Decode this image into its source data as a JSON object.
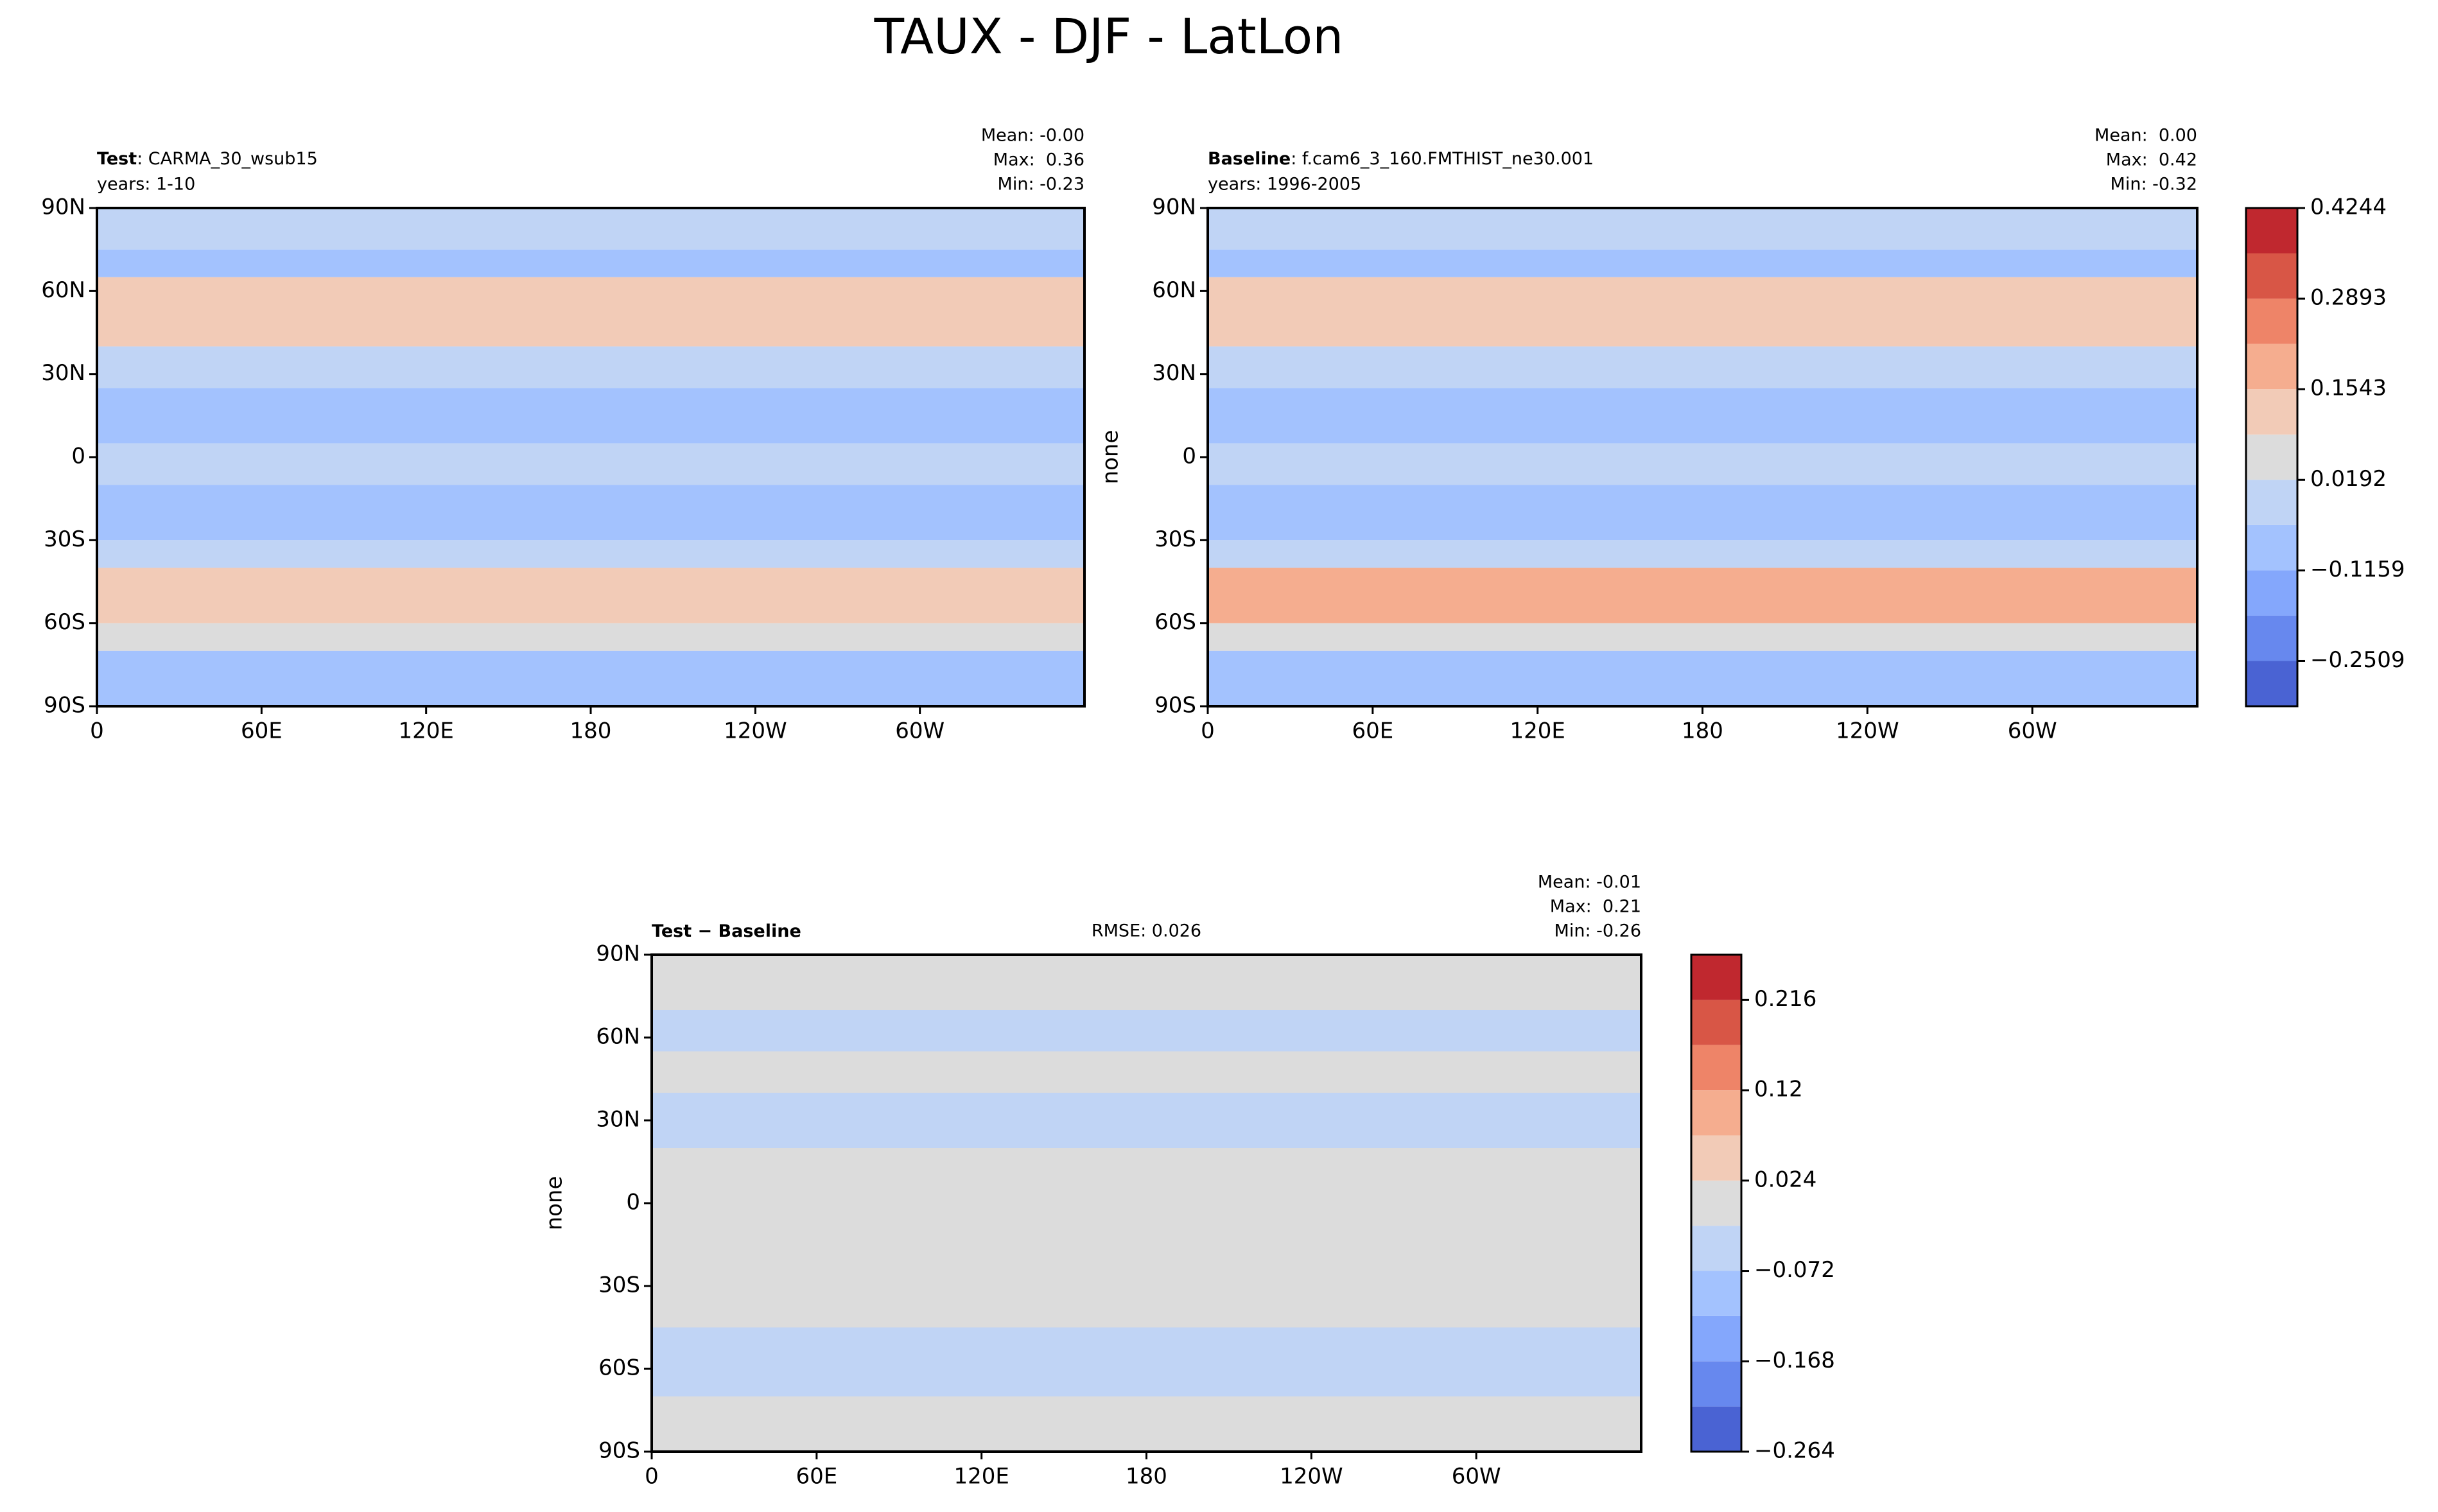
{
  "title": "TAUX - DJF - LatLon",
  "chart_data": [
    {
      "type": "contour",
      "left_title_bold": "Test",
      "left_title": ": CARMA_30_wsub15",
      "subtitle": "years: 1-10",
      "stats": [
        "Mean: -0.00",
        "Max:  0.36",
        "Min: -0.23"
      ],
      "xlim": [
        0,
        360
      ],
      "ylim": [
        -90,
        90
      ],
      "xticks": [
        0,
        {
          "value": 60,
          "label": "60E"
        },
        {
          "value": 120,
          "label": "120E"
        },
        180,
        {
          "value": 240,
          "label": "120W"
        },
        {
          "value": 300,
          "label": "60W"
        }
      ],
      "yticks": [
        {
          "value": 90,
          "label": "90N"
        },
        {
          "value": 60,
          "label": "60N"
        },
        {
          "value": 30,
          "label": "30N"
        },
        0,
        {
          "value": -30,
          "label": "30S"
        },
        {
          "value": -60,
          "label": "60S"
        },
        {
          "value": -90,
          "label": "90S"
        }
      ],
      "field": {
        "lat_edges": [
          90,
          75,
          65,
          40,
          25,
          5,
          -10,
          -30,
          -40,
          -60,
          -70,
          -90
        ],
        "values": [
          0,
          -0.05,
          0.1,
          0,
          -0.1,
          0,
          -0.08,
          0,
          0.15,
          0.02,
          -0.05
        ]
      }
    },
    {
      "type": "contour",
      "left_title_bold": "Baseline",
      "left_title": ": f.cam6_3_160.FMTHIST_ne30.001",
      "subtitle": "years: 1996-2005",
      "stats": [
        "Mean:  0.00",
        "Max:  0.42",
        "Min: -0.32"
      ],
      "ylabel": "none",
      "xlim": [
        0,
        360
      ],
      "ylim": [
        -90,
        90
      ],
      "xticks": [
        0,
        {
          "value": 60,
          "label": "60E"
        },
        {
          "value": 120,
          "label": "120E"
        },
        180,
        {
          "value": 240,
          "label": "120W"
        },
        {
          "value": 300,
          "label": "60W"
        }
      ],
      "yticks": [
        {
          "value": 90,
          "label": "90N"
        },
        {
          "value": 60,
          "label": "60N"
        },
        {
          "value": 30,
          "label": "30N"
        },
        0,
        {
          "value": -30,
          "label": "30S"
        },
        {
          "value": -60,
          "label": "60S"
        },
        {
          "value": -90,
          "label": "90S"
        }
      ],
      "field": {
        "lat_edges": [
          90,
          75,
          65,
          40,
          25,
          5,
          -10,
          -30,
          -40,
          -60,
          -70,
          -90
        ],
        "values": [
          0,
          -0.08,
          0.15,
          0,
          -0.1,
          0,
          -0.1,
          0,
          0.2,
          0.02,
          -0.08
        ]
      },
      "colorbar": {
        "lim": [
          -0.3184,
          0.4244
        ],
        "levels": [
          -0.3184,
          -0.2509,
          -0.1834,
          -0.1159,
          -0.0484,
          0.0192,
          0.0867,
          0.1543,
          0.2218,
          0.2893,
          0.3569,
          0.4244
        ],
        "colors": [
          "#4a63d3",
          "#6788ee",
          "#84a7fc",
          "#a3c2fe",
          "#c0d4f5",
          "#dcdcdc",
          "#f2cbb7",
          "#f5ad8f",
          "#ee8468",
          "#d85646",
          "#c0282f"
        ],
        "ticks": [
          {
            "value": -0.2509,
            "label": "−0.2509"
          },
          {
            "value": -0.1159,
            "label": "−0.1159"
          },
          0.0192,
          0.1543,
          0.2893,
          0.4244
        ]
      }
    },
    {
      "type": "contour",
      "left_title_bold": "Test − Baseline",
      "center_title": "RMSE: 0.026",
      "stats": [
        "Mean: -0.01",
        "Max:  0.21",
        "Min: -0.26"
      ],
      "ylabel": "none",
      "xlim": [
        0,
        360
      ],
      "ylim": [
        -90,
        90
      ],
      "xticks": [
        0,
        {
          "value": 60,
          "label": "60E"
        },
        {
          "value": 120,
          "label": "120E"
        },
        180,
        {
          "value": 240,
          "label": "120W"
        },
        {
          "value": 300,
          "label": "60W"
        }
      ],
      "yticks": [
        {
          "value": 90,
          "label": "90N"
        },
        {
          "value": 60,
          "label": "60N"
        },
        {
          "value": 30,
          "label": "30N"
        },
        0,
        {
          "value": -30,
          "label": "30S"
        },
        {
          "value": -60,
          "label": "60S"
        },
        {
          "value": -90,
          "label": "90S"
        }
      ],
      "field": {
        "lat_edges": [
          90,
          70,
          55,
          40,
          20,
          -45,
          -60,
          -70,
          -90
        ],
        "values": [
          0,
          -0.03,
          0,
          -0.03,
          0,
          -0.03,
          -0.03,
          0
        ]
      },
      "colorbar": {
        "lim": [
          -0.264,
          0.264
        ],
        "levels": [
          -0.264,
          -0.216,
          -0.168,
          -0.12,
          -0.072,
          -0.024,
          0.024,
          0.072,
          0.12,
          0.168,
          0.216,
          0.264
        ],
        "colors": [
          "#4a63d3",
          "#6788ee",
          "#84a7fc",
          "#a3c2fe",
          "#c0d4f5",
          "#dcdcdc",
          "#f2cbb7",
          "#f5ad8f",
          "#ee8468",
          "#d85646",
          "#c0282f"
        ],
        "ticks": [
          {
            "value": -0.264,
            "label": "−0.264"
          },
          {
            "value": -0.168,
            "label": "−0.168"
          },
          {
            "value": -0.072,
            "label": "−0.072"
          },
          0.024,
          0.12,
          0.216
        ]
      }
    }
  ]
}
